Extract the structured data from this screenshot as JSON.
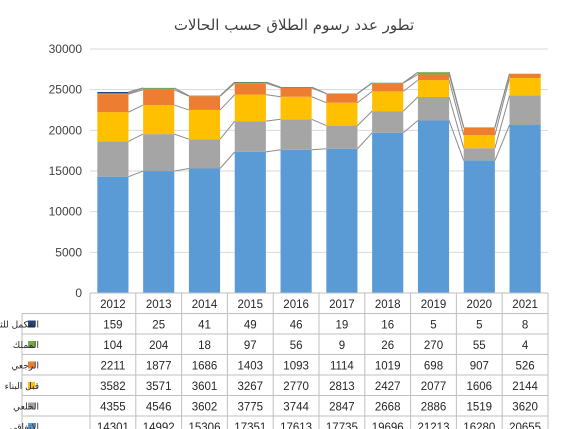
{
  "chart_data": {
    "type": "bar",
    "stacked": true,
    "title": "تطور عدد رسوم الطلاق حسب الحالات",
    "categories": [
      "2012",
      "2013",
      "2014",
      "2015",
      "2016",
      "2017",
      "2018",
      "2019",
      "2020",
      "2021"
    ],
    "ylim": [
      0,
      30000
    ],
    "yticks": [
      "0",
      "5000",
      "10000",
      "15000",
      "20000",
      "25000",
      "30000"
    ],
    "ytick_values": [
      0,
      5000,
      10000,
      15000,
      20000,
      25000,
      30000
    ],
    "grid": true,
    "legend": "data-table-left",
    "series": [
      {
        "name": "الاتفاقي",
        "color": "#5b9bd5",
        "values": [
          14301,
          14992,
          15306,
          17351,
          17613,
          17735,
          19696,
          21213,
          16280,
          20655
        ]
      },
      {
        "name": "الخلعي",
        "color": "#a5a5a5",
        "values": [
          4355,
          4546,
          3602,
          3775,
          3744,
          2847,
          2668,
          2886,
          1519,
          3620
        ]
      },
      {
        "name": "قبل البناء",
        "color": "#ffc000",
        "values": [
          3582,
          3571,
          3601,
          3267,
          2770,
          2813,
          2427,
          2077,
          1606,
          2144
        ]
      },
      {
        "name": "الرجعي",
        "color": "#ed7d31",
        "values": [
          2211,
          1877,
          1686,
          1403,
          1093,
          1114,
          1019,
          698,
          907,
          526
        ]
      },
      {
        "name": "المملك",
        "color": "#70ad47",
        "values": [
          104,
          204,
          18,
          97,
          56,
          9,
          26,
          270,
          55,
          4
        ]
      },
      {
        "name": "المكمل للثلاث",
        "color": "#264478",
        "values": [
          159,
          25,
          41,
          49,
          46,
          19,
          16,
          5,
          5,
          8
        ]
      }
    ],
    "table_rows_top_to_bottom": [
      5,
      4,
      3,
      2,
      1,
      0
    ]
  }
}
